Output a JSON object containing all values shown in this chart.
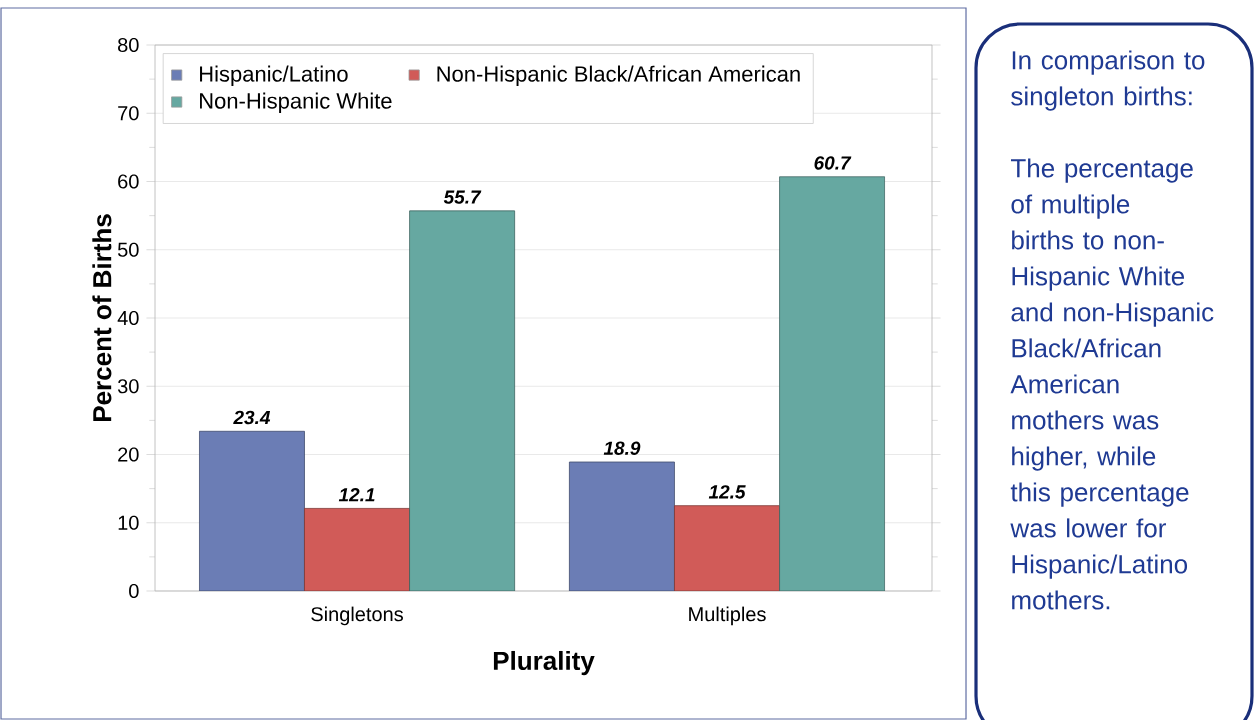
{
  "chart_data": {
    "type": "bar",
    "xlabel": "Plurality",
    "ylabel": "Percent of Births",
    "categories": [
      "Singletons",
      "Multiples"
    ],
    "series": [
      {
        "name": "Hispanic/Latino",
        "color": "#6b7db5",
        "values": [
          23.4,
          18.9
        ]
      },
      {
        "name": "Non-Hispanic Black/African American",
        "color": "#d15b58",
        "values": [
          12.1,
          12.5
        ]
      },
      {
        "name": "Non-Hispanic White",
        "color": "#66a8a1",
        "values": [
          55.7,
          60.7
        ]
      }
    ],
    "ylim": [
      0,
      80
    ],
    "yticks": [
      0,
      10,
      20,
      30,
      40,
      50,
      60,
      70,
      80
    ],
    "grid": "y",
    "legend": "top left",
    "data_labels": true,
    "annotations": [
      "In comparison to singleton births:",
      "The percentage of multiple births to non-Hispanic White and non-Hispanic Black/African American mothers was higher, while this percentage was lower for Hispanic/Latino mothers."
    ]
  }
}
